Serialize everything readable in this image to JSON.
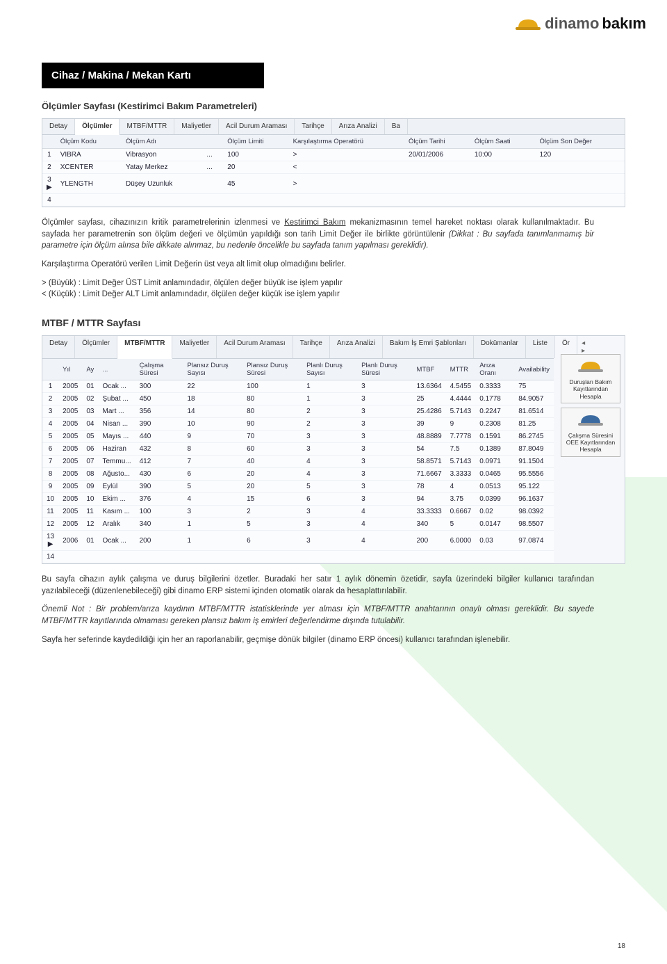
{
  "logo": {
    "brand1": "dinamo",
    "brand2": "bakım"
  },
  "header_black": "Cihaz / Makina / Mekan Kartı",
  "section1_title": "Ölçümler Sayfası (Kestirimci Bakım Parametreleri)",
  "tabs1": [
    "Detay",
    "Ölçümler",
    "MTBF/MTTR",
    "Maliyetler",
    "Acil Durum Araması",
    "Tarihçe",
    "Arıza Analizi",
    "Ba"
  ],
  "tabs1_active": 1,
  "grid1": {
    "headers": [
      "",
      "Ölçüm Kodu",
      "Ölçüm Adı",
      "",
      "Ölçüm Limiti",
      "Karşılaştırma Operatörü",
      "Ölçüm Tarihi",
      "Ölçüm Saati",
      "Ölçüm Son Değer"
    ],
    "rows": [
      [
        "1",
        "VIBRA",
        "Vibrasyon",
        "...",
        "100",
        ">",
        "20/01/2006",
        "10:00",
        "120"
      ],
      [
        "2",
        "XCENTER",
        "Yatay Merkez",
        "...",
        "20",
        "<",
        "",
        "",
        ""
      ],
      [
        "3 ▶",
        "YLENGTH",
        "Düşey Uzunluk",
        "",
        "45",
        ">",
        "",
        "",
        ""
      ],
      [
        "4",
        "",
        "",
        "",
        "",
        "",
        "",
        "",
        ""
      ]
    ]
  },
  "para1a": "Ölçümler sayfası, cihazınızın kritik parametrelerinin izlenmesi ve ",
  "para1a_link": "Kestirimci Bakım",
  "para1b": " mekanizmasının temel hareket noktası olarak kullanılmaktadır. Bu sayfada her parametrenin son ölçüm değeri ve ölçümün yapıldığı son tarih Limit Değer ile birlikte görüntülenir ",
  "para1b_italic": "(Dikkat : Bu sayfada tanımlanmamış bir parametre için ölçüm alınsa bile dikkate alınmaz, bu nedenle öncelikle bu sayfada tanım yapılması gereklidir).",
  "para2": "Karşılaştırma Operatörü verilen Limit Değerin üst veya alt limit olup olmadığını belirler.",
  "para3a": "> (Büyük) : Limit Değer ÜST Limit anlamındadır, ölçülen değer büyük ise işlem yapılır",
  "para3b": "< (Küçük) : Limit Değer ALT Limit anlamındadır, ölçülen değer küçük ise işlem yapılır",
  "section2_title": "MTBF / MTTR Sayfası",
  "tabs2": [
    "Detay",
    "Ölçümler",
    "MTBF/MTTR",
    "Maliyetler",
    "Acil Durum Araması",
    "Tarihçe",
    "Arıza Analizi",
    "Bakım İş Emri Şablonları",
    "Dokümanlar",
    "Liste",
    "Ör"
  ],
  "tabs2_active": 2,
  "grid2": {
    "headers": [
      "",
      "Yıl",
      "Ay",
      "...",
      "Çalışma Süresi",
      "Plansız Duruş Sayısı",
      "Plansız Duruş Süresi",
      "Planlı Duruş Sayısı",
      "Planlı Duruş Süresi",
      "MTBF",
      "MTTR",
      "Arıza Oranı",
      "Availability"
    ],
    "rows": [
      [
        "1",
        "2005",
        "01",
        "Ocak ...",
        "300",
        "22",
        "100",
        "1",
        "3",
        "13.6364",
        "4.5455",
        "0.3333",
        "75"
      ],
      [
        "2",
        "2005",
        "02",
        "Şubat ...",
        "450",
        "18",
        "80",
        "1",
        "3",
        "25",
        "4.4444",
        "0.1778",
        "84.9057"
      ],
      [
        "3",
        "2005",
        "03",
        "Mart ...",
        "356",
        "14",
        "80",
        "2",
        "3",
        "25.4286",
        "5.7143",
        "0.2247",
        "81.6514"
      ],
      [
        "4",
        "2005",
        "04",
        "Nisan ...",
        "390",
        "10",
        "90",
        "2",
        "3",
        "39",
        "9",
        "0.2308",
        "81.25"
      ],
      [
        "5",
        "2005",
        "05",
        "Mayıs ...",
        "440",
        "9",
        "70",
        "3",
        "3",
        "48.8889",
        "7.7778",
        "0.1591",
        "86.2745"
      ],
      [
        "6",
        "2005",
        "06",
        "Haziran",
        "432",
        "8",
        "60",
        "3",
        "3",
        "54",
        "7.5",
        "0.1389",
        "87.8049"
      ],
      [
        "7",
        "2005",
        "07",
        "Temmu...",
        "412",
        "7",
        "40",
        "4",
        "3",
        "58.8571",
        "5.7143",
        "0.0971",
        "91.1504"
      ],
      [
        "8",
        "2005",
        "08",
        "Ağusto...",
        "430",
        "6",
        "20",
        "4",
        "3",
        "71.6667",
        "3.3333",
        "0.0465",
        "95.5556"
      ],
      [
        "9",
        "2005",
        "09",
        "Eylül",
        "390",
        "5",
        "20",
        "5",
        "3",
        "78",
        "4",
        "0.0513",
        "95.122"
      ],
      [
        "10",
        "2005",
        "10",
        "Ekim ...",
        "376",
        "4",
        "15",
        "6",
        "3",
        "94",
        "3.75",
        "0.0399",
        "96.1637"
      ],
      [
        "11",
        "2005",
        "11",
        "Kasım ...",
        "100",
        "3",
        "2",
        "3",
        "4",
        "33.3333",
        "0.6667",
        "0.02",
        "98.0392"
      ],
      [
        "12",
        "2005",
        "12",
        "Aralık",
        "340",
        "1",
        "5",
        "3",
        "4",
        "340",
        "5",
        "0.0147",
        "98.5507"
      ],
      [
        "13 ▶",
        "2006",
        "01",
        "Ocak ...",
        "200",
        "1",
        "6",
        "3",
        "4",
        "200",
        "6.0000",
        "0.03",
        "97.0874"
      ],
      [
        "14",
        "",
        "",
        "",
        "",
        "",
        "",
        "",
        "",
        "",
        "",
        "",
        ""
      ]
    ]
  },
  "side_buttons": [
    {
      "icon_color": "#e6a817",
      "label": "Duruşları Bakım Kayıtlarından Hesapla"
    },
    {
      "icon_color": "#3b6aa0",
      "label": "Çalışma Süresini OEE Kayıtlarından Hesapla"
    }
  ],
  "para4": "Bu sayfa cihazın aylık çalışma ve duruş bilgilerini özetler. Buradaki her satır 1 aylık dönemin özetidir, sayfa üzerindeki bilgiler kullanıcı tarafından yazılabileceği (düzenlenebileceği) gibi dinamo ERP sistemi içinden otomatik olarak da hesaplattırılabilir.",
  "para5": "Önemli Not : Bir problem/arıza kaydının MTBF/MTTR istatisklerinde yer alması için MTBF/MTTR anahtarının onaylı olması gereklidir. Bu sayede MTBF/MTTR kayıtlarında olmaması gereken plansız bakım iş emirleri değerlendirme dışında tutulabilir.",
  "para6": "Sayfa her seferinde kaydedildiği için her an raporlanabilir, geçmişe dönük bilgiler (dinamo ERP öncesi) kullanıcı tarafından işlenebilir.",
  "page_number": "18",
  "colors": {
    "accent_green": "#e8f8e8",
    "tab_bg": "#eef1f5",
    "header_bg": "#000000",
    "grid_header": "#f0f3f8"
  }
}
